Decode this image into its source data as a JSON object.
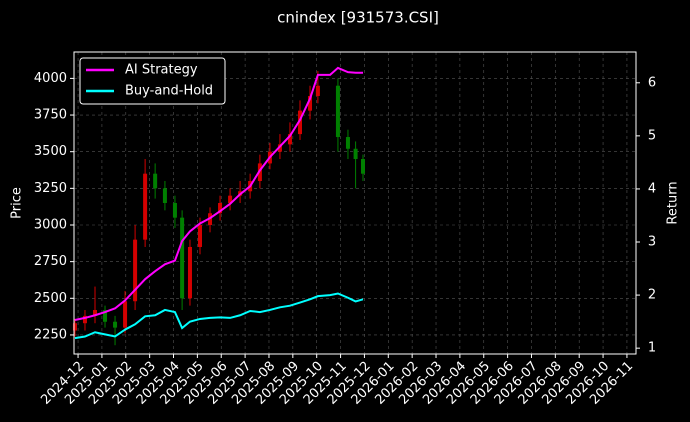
{
  "chart_data": {
    "type": "candlestick",
    "title": "cnindex [931573.CSI]",
    "y_label": "Price",
    "y2_label": "Return",
    "grid": true,
    "legend": "upper left",
    "xlim": [
      -0.17,
      23.38
    ],
    "xticks": [
      {
        "value": 0,
        "label": "2024-12"
      },
      {
        "value": 1,
        "label": "2025-01"
      },
      {
        "value": 2,
        "label": "2025-02"
      },
      {
        "value": 3,
        "label": "2025-03"
      },
      {
        "value": 4,
        "label": "2025-04"
      },
      {
        "value": 5,
        "label": "2025-05"
      },
      {
        "value": 6,
        "label": "2025-06"
      },
      {
        "value": 7,
        "label": "2025-07"
      },
      {
        "value": 8,
        "label": "2025-08"
      },
      {
        "value": 9,
        "label": "2025-09"
      },
      {
        "value": 10,
        "label": "2025-10"
      },
      {
        "value": 11,
        "label": "2025-11"
      },
      {
        "value": 12,
        "label": "2025-12"
      },
      {
        "value": 13,
        "label": "2026-01"
      },
      {
        "value": 14,
        "label": "2026-02"
      },
      {
        "value": 15,
        "label": "2026-03"
      },
      {
        "value": 16,
        "label": "2026-04"
      },
      {
        "value": 17,
        "label": "2026-05"
      },
      {
        "value": 18,
        "label": "2026-06"
      },
      {
        "value": 19,
        "label": "2026-07"
      },
      {
        "value": 20,
        "label": "2026-08"
      },
      {
        "value": 21,
        "label": "2026-09"
      },
      {
        "value": 22,
        "label": "2026-10"
      },
      {
        "value": 23,
        "label": "2026-11"
      }
    ],
    "ylim": [
      2120,
      4180
    ],
    "yticks": [
      2250,
      2500,
      2750,
      3000,
      3250,
      3500,
      3750,
      4000
    ],
    "y2lim": [
      0.89,
      6.58
    ],
    "y2ticks": [
      1,
      2,
      3,
      4,
      5,
      6
    ],
    "candles": {
      "up_color": "#d40000",
      "down_color": "#008000",
      "x": [
        -0.13,
        0.29,
        0.71,
        1.13,
        1.55,
        1.97,
        2.39,
        2.81,
        3.23,
        3.64,
        4.06,
        4.36,
        4.69,
        5.11,
        5.53,
        5.95,
        6.37,
        6.79,
        7.21,
        7.62,
        8.04,
        8.46,
        8.88,
        9.3,
        9.72,
        10.05,
        10.89,
        11.31,
        11.63,
        11.94
      ],
      "open": [
        2280,
        2330,
        2380,
        2420,
        2340,
        2300,
        2480,
        2900,
        3350,
        3250,
        3150,
        3050,
        2500,
        2850,
        3000,
        3080,
        3150,
        3200,
        3230,
        3300,
        3420,
        3500,
        3550,
        3620,
        3780,
        3880,
        3950,
        3600,
        3520,
        3450
      ],
      "high": [
        2360,
        2420,
        2580,
        2450,
        2380,
        2550,
        3000,
        3450,
        3420,
        3300,
        3200,
        3100,
        2900,
        3050,
        3120,
        3200,
        3250,
        3300,
        3350,
        3480,
        3560,
        3620,
        3700,
        3850,
        3950,
        4050,
        4000,
        3650,
        3570,
        3480
      ],
      "low": [
        2240,
        2280,
        2330,
        2300,
        2180,
        2260,
        2420,
        2850,
        3180,
        3100,
        2980,
        2420,
        2450,
        2800,
        2950,
        3030,
        3100,
        3150,
        3180,
        3250,
        3380,
        3450,
        3500,
        3580,
        3720,
        3830,
        3500,
        3450,
        3250,
        3300
      ],
      "close": [
        2330,
        2380,
        2420,
        2340,
        2300,
        2480,
        2900,
        3350,
        3250,
        3150,
        3050,
        2500,
        2850,
        3000,
        3080,
        3150,
        3200,
        3230,
        3300,
        3420,
        3500,
        3550,
        3620,
        3780,
        3880,
        3950,
        3600,
        3520,
        3450,
        3350
      ]
    },
    "x": [
      -0.13,
      0.29,
      0.71,
      1.13,
      1.55,
      1.97,
      2.39,
      2.81,
      3.23,
      3.64,
      4.06,
      4.36,
      4.69,
      5.11,
      5.53,
      5.95,
      6.37,
      6.79,
      7.21,
      7.62,
      8.04,
      8.46,
      8.88,
      9.3,
      9.72,
      10.05,
      10.56,
      10.89,
      11.31,
      11.63,
      11.94
    ],
    "series": [
      {
        "name": "AI Strategy",
        "color": "#ff00ff",
        "axis": "y2",
        "values": [
          1.53,
          1.57,
          1.62,
          1.68,
          1.75,
          1.9,
          2.1,
          2.3,
          2.45,
          2.58,
          2.65,
          3.02,
          3.2,
          3.35,
          3.45,
          3.58,
          3.72,
          3.9,
          4.05,
          4.35,
          4.6,
          4.8,
          5.0,
          5.3,
          5.7,
          6.15,
          6.15,
          6.28,
          6.2,
          6.19,
          6.19
        ]
      },
      {
        "name": "Buy-and-Hold",
        "color": "#00ffff",
        "axis": "y2",
        "values": [
          1.19,
          1.22,
          1.3,
          1.26,
          1.22,
          1.35,
          1.45,
          1.6,
          1.62,
          1.72,
          1.68,
          1.38,
          1.5,
          1.55,
          1.57,
          1.58,
          1.57,
          1.62,
          1.7,
          1.68,
          1.72,
          1.77,
          1.8,
          1.86,
          1.92,
          1.98,
          2.0,
          2.03,
          1.95,
          1.88,
          1.92
        ]
      }
    ]
  }
}
